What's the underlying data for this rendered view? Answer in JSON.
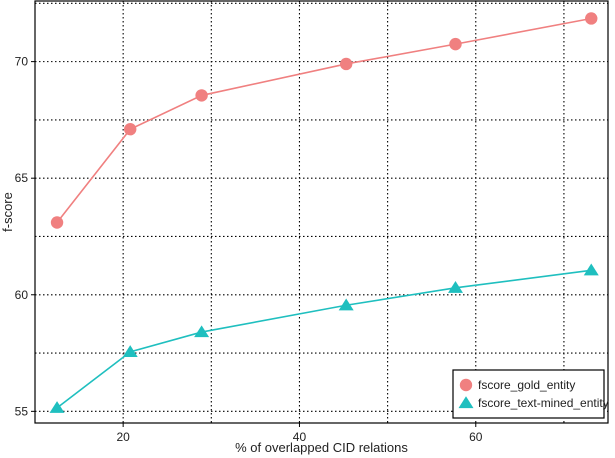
{
  "chart_data": {
    "type": "line",
    "title": "",
    "xlabel": "% of overlapped CID relations",
    "ylabel": "f-score",
    "xlim": [
      10,
      75
    ],
    "ylim": [
      54.5,
      72.6
    ],
    "x_ticks": [
      20,
      40,
      60
    ],
    "y_ticks": [
      55,
      60,
      65,
      70
    ],
    "x_grid": [
      10,
      20,
      30,
      40,
      50,
      60,
      70
    ],
    "y_grid": [
      55,
      57.5,
      60,
      62.5,
      65,
      67.5,
      70,
      72.5
    ],
    "grid": true,
    "legend_position": "bottom-right",
    "series": [
      {
        "name": "fscore_gold_entity",
        "color": "#f08080",
        "marker": "circle",
        "x": [
          12.5,
          20.8,
          28.9,
          45.3,
          57.7,
          73.1
        ],
        "y": [
          63.1,
          67.1,
          68.55,
          69.9,
          70.75,
          71.85
        ]
      },
      {
        "name": "fscore_text-mined_entity",
        "color": "#1fbfbf",
        "marker": "triangle",
        "x": [
          12.5,
          20.8,
          28.9,
          45.3,
          57.7,
          73.1
        ],
        "y": [
          55.15,
          57.55,
          58.4,
          59.55,
          60.3,
          61.05
        ]
      }
    ]
  }
}
